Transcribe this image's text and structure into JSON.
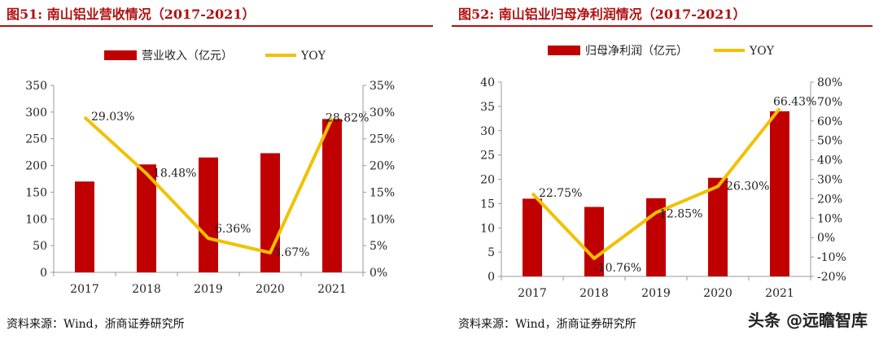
{
  "colors": {
    "bar": "#c00000",
    "line": "#f2c100",
    "title": "#b01010",
    "axis": "#9a9a9a"
  },
  "charts": [
    {
      "title": "图51:  南山铝业营收情况（2017-2021）",
      "source": "资料来源：Wind，浙商证券研究所",
      "chart_data": {
        "type": "bar",
        "categories": [
          "2017",
          "2018",
          "2019",
          "2020",
          "2021"
        ],
        "series": [
          {
            "name": "营业收入（亿元）",
            "type": "bar",
            "axis": "left",
            "values": [
              170,
              202,
              215,
              223,
              287
            ]
          },
          {
            "name": "YOY",
            "type": "line",
            "axis": "right",
            "values": [
              29.03,
              18.48,
              6.36,
              3.67,
              28.82
            ],
            "labels": [
              "29.03%",
              "18.48%",
              "6.36%",
              "3.67%",
              "28.82%"
            ]
          }
        ],
        "ylim": [
          0,
          350
        ],
        "yticks": [
          "0",
          "50",
          "100",
          "150",
          "200",
          "250",
          "300",
          "350"
        ],
        "y2lim": [
          0,
          35
        ],
        "y2ticks": [
          "0%",
          "5%",
          "10%",
          "15%",
          "20%",
          "25%",
          "30%",
          "35%"
        ],
        "legend": "top"
      }
    },
    {
      "title": "图52:  南山铝业归母净利润情况（2017-2021）",
      "source": "资料来源：Wind，浙商证券研究所",
      "watermark": "头条 @远瞻智库",
      "chart_data": {
        "type": "bar",
        "categories": [
          "2017",
          "2018",
          "2019",
          "2020",
          "2021"
        ],
        "series": [
          {
            "name": "归母净利润（亿元）",
            "type": "bar",
            "axis": "left",
            "values": [
              16,
              14.3,
              16.1,
              20.3,
              34
            ]
          },
          {
            "name": "YOY",
            "type": "line",
            "axis": "right",
            "values": [
              22.75,
              -10.76,
              12.85,
              26.3,
              66.43
            ],
            "labels": [
              "22.75%",
              "-10.76%",
              "12.85%",
              "26.30%",
              "66.43%"
            ]
          }
        ],
        "ylim": [
          0,
          40
        ],
        "yticks": [
          "0",
          "5",
          "10",
          "15",
          "20",
          "25",
          "30",
          "35",
          "40"
        ],
        "y2lim": [
          -20,
          80
        ],
        "y2ticks": [
          "-20%",
          "-10%",
          "0%",
          "10%",
          "20%",
          "30%",
          "40%",
          "50%",
          "60%",
          "70%",
          "80%"
        ],
        "legend": "top"
      }
    }
  ]
}
